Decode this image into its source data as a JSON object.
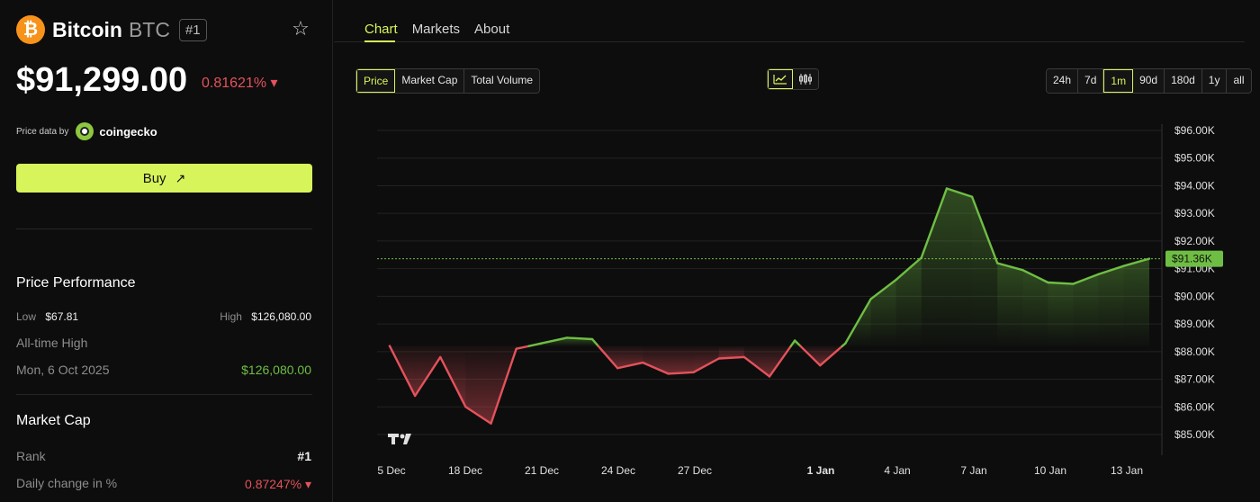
{
  "coin": {
    "name": "Bitcoin",
    "symbol": "BTC",
    "rank_badge": "#1",
    "logo_glyph": "₿",
    "price": "$91,299.00",
    "change": "0.81621% ▾"
  },
  "source": {
    "prefix": "Price data by",
    "name": "coingecko"
  },
  "buy": {
    "label": "Buy",
    "arrow": "↗"
  },
  "performance": {
    "title": "Price Performance",
    "low_label": "Low",
    "low_value": "$67.81",
    "high_label": "High",
    "high_value": "$126,080.00",
    "ath_label": "All-time High",
    "ath_date": "Mon, 6 Oct 2025",
    "ath_value": "$126,080.00"
  },
  "market_cap": {
    "title": "Market Cap",
    "rank_label": "Rank",
    "rank_value": "#1",
    "daily_label": "Daily change in %",
    "daily_value": "0.87247% ▾"
  },
  "tabs": [
    "Chart",
    "Markets",
    "About"
  ],
  "metric_options": [
    "Price",
    "Market Cap",
    "Total Volume"
  ],
  "range_options": [
    "24h",
    "7d",
    "1m",
    "90d",
    "180d",
    "1y",
    "all"
  ],
  "chart_icons": [
    "line-chart-icon",
    "candlestick-icon"
  ],
  "colors": {
    "accent": "#d7f55b",
    "up": "#6fbe44",
    "down": "#e4525b"
  },
  "chart_data": {
    "type": "line",
    "x_labels": [
      "5 Dec",
      "18 Dec",
      "21 Dec",
      "24 Dec",
      "27 Dec",
      "1 Jan",
      "4 Jan",
      "7 Jan",
      "10 Jan",
      "13 Jan"
    ],
    "y_ticks": [
      "$96.00K",
      "$95.00K",
      "$94.00K",
      "$93.00K",
      "$92.00K",
      "$91.00K",
      "$90.00K",
      "$89.00K",
      "$88.00K",
      "$87.00K",
      "$86.00K",
      "$85.00K"
    ],
    "ylim": [
      85000,
      96000
    ],
    "baseline": 88200,
    "current_label": "$91.36K",
    "current_value": 91360,
    "values": [
      88200,
      86400,
      87800,
      86000,
      85400,
      88100,
      88300,
      88500,
      88450,
      87400,
      87600,
      87200,
      87250,
      87750,
      87800,
      87100,
      88400,
      87500,
      88300,
      89900,
      90600,
      91400,
      93900,
      93600,
      91200,
      90950,
      90500,
      90450,
      90800,
      91100,
      91360
    ]
  }
}
